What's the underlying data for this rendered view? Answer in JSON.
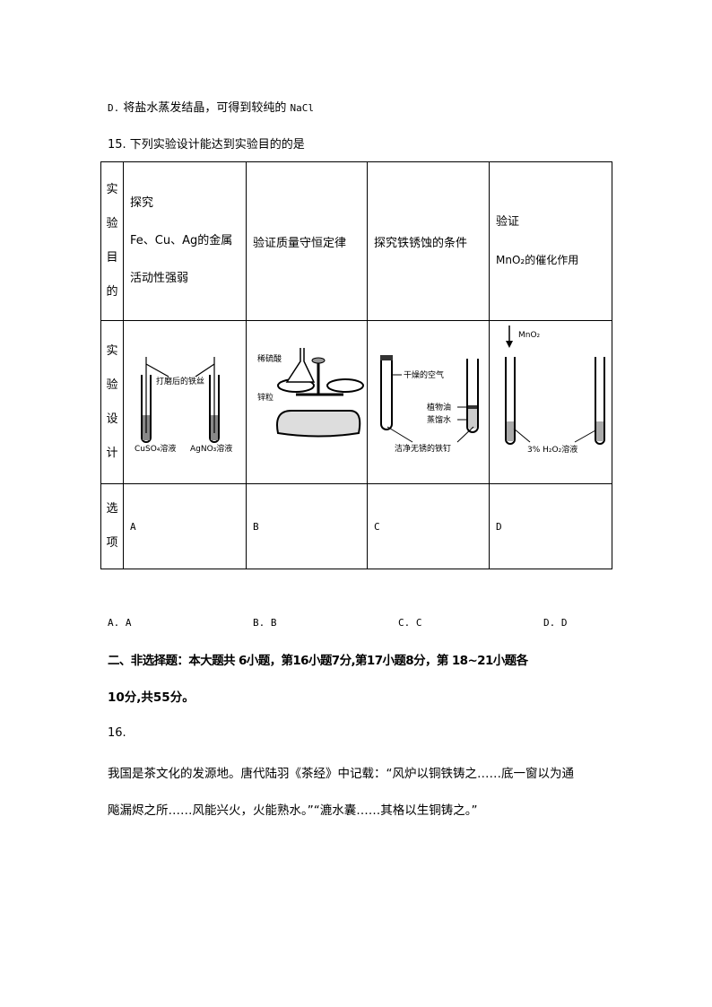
{
  "prev_option": {
    "prefix": "D.",
    "text": "将盐水蒸发结晶，可得到较纯的",
    "formula": "NaCl"
  },
  "q15": {
    "stem": "15. 下列实验设计能达到实验目的的是",
    "row_headers": {
      "purpose": "实验目的",
      "design": "实验设计",
      "option": "选项"
    },
    "purpose": {
      "A": {
        "l1": "探究",
        "l2": "Fe、Cu、Ag的金属",
        "l3": "活动性强弱"
      },
      "B": "验证质量守恒定律",
      "C": "探究铁锈蚀的条件",
      "D": {
        "l1": "验证",
        "l2": "MnO₂的催化作用"
      }
    },
    "design_labels": {
      "A": {
        "nail": "打磨后的铁丝",
        "left": "CuSO₄溶液",
        "right": "AgNO₃溶液"
      },
      "B": {
        "acid": "稀硫酸",
        "zinc": "锌粒"
      },
      "C": {
        "air": "干燥的空气",
        "oil": "植物油",
        "water": "蒸馏水",
        "nail": "洁净无锈的铁钉"
      },
      "D": {
        "catalyst": "MnO₂",
        "solution": "3% H₂O₂溶液"
      }
    },
    "options": [
      "A",
      "B",
      "C",
      "D"
    ],
    "answers": [
      "A. A",
      "B. B",
      "C. C",
      "D. D"
    ]
  },
  "section2": {
    "line1": "二、非选择题：本大题共 6小题，第16小题7分,第17小题8分，第 18~21小题各",
    "line2": "10分,共55分。"
  },
  "q16": {
    "number": "16.",
    "line1": "我国是茶文化的发源地。唐代陆羽《茶经》中记载：“风炉以铜铁铸之……底一窗以为通",
    "line2": "飚漏烬之所……风能兴火，火能熟水。”“漉水囊……其格以生铜铸之。”"
  }
}
